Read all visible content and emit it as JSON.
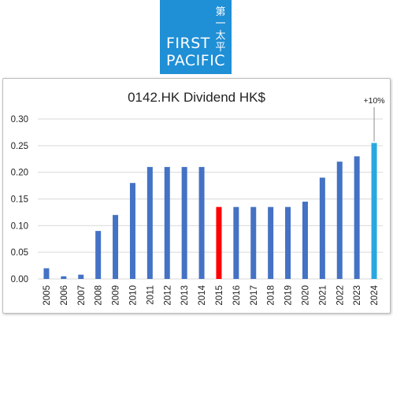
{
  "logo": {
    "chinese": "第一太平",
    "line1": "FIRST",
    "line2": "PACIFIC",
    "bg_color": "#1f8fd6"
  },
  "chart_data": {
    "type": "bar",
    "title": "0142.HK Dividend HK$",
    "xlabel": "",
    "ylabel": "",
    "categories": [
      "2005",
      "2006",
      "2007",
      "2008",
      "2009",
      "2010",
      "2011",
      "2012",
      "2013",
      "2014",
      "2015",
      "2016",
      "2017",
      "2018",
      "2019",
      "2020",
      "2021",
      "2022",
      "2023",
      "2024"
    ],
    "values": [
      0.02,
      0.005,
      0.008,
      0.09,
      0.12,
      0.18,
      0.21,
      0.21,
      0.21,
      0.21,
      0.135,
      0.135,
      0.135,
      0.135,
      0.135,
      0.145,
      0.19,
      0.22,
      0.23,
      0.255
    ],
    "ylim": [
      0,
      0.3
    ],
    "yticks": [
      "0.00",
      "0.05",
      "0.10",
      "0.15",
      "0.20",
      "0.25",
      "0.30"
    ],
    "grid": true,
    "legend": "none",
    "colors": {
      "default": "#4472c4",
      "2015": "#ff0000",
      "2024": "#29a8e0",
      "grid": "#d9d9d9"
    },
    "annotations": [
      {
        "category": "2024",
        "text": "+10%"
      }
    ]
  }
}
